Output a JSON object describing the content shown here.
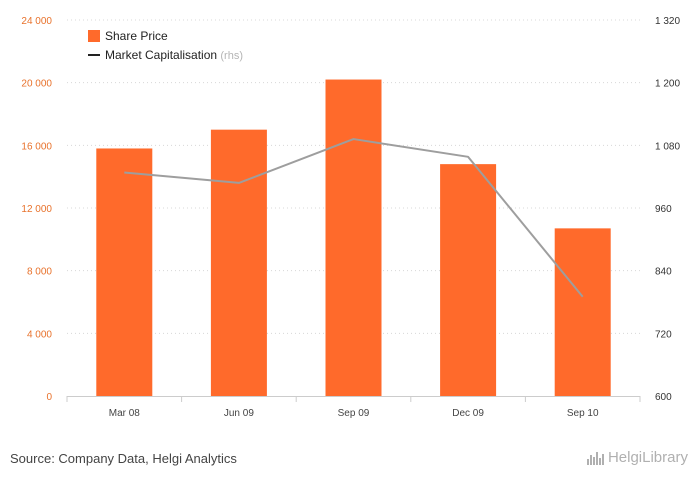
{
  "chart_data": {
    "type": "bar",
    "categories": [
      "Mar 08",
      "Jun 09",
      "Sep 09",
      "Dec 09",
      "Sep 10"
    ],
    "series": [
      {
        "name": "Share Price",
        "kind": "bar",
        "axis": "left",
        "color": "#ff6a2b",
        "values": [
          15800,
          17000,
          20200,
          14800,
          10700
        ]
      },
      {
        "name": "Market Capitalisation",
        "kind": "line",
        "axis": "right",
        "color": "#9e9e9e",
        "values": [
          1028,
          1008,
          1092,
          1058,
          790
        ]
      }
    ],
    "legend": [
      {
        "label": "Share Price",
        "suffix": ""
      },
      {
        "label": "Market Capitalisation",
        "suffix": "(rhs)"
      }
    ],
    "left_axis": {
      "min": 0,
      "max": 24000,
      "ticks": [
        {
          "value": 0,
          "label": "0"
        },
        {
          "value": 4000,
          "label": "4 000"
        },
        {
          "value": 8000,
          "label": "8 000"
        },
        {
          "value": 12000,
          "label": "12 000"
        },
        {
          "value": 16000,
          "label": "16 000"
        },
        {
          "value": 20000,
          "label": "20 000"
        },
        {
          "value": 24000,
          "label": "24 000"
        }
      ]
    },
    "right_axis": {
      "min": 600,
      "max": 1320,
      "ticks": [
        {
          "value": 600,
          "label": "600"
        },
        {
          "value": 720,
          "label": "720"
        },
        {
          "value": 840,
          "label": "840"
        },
        {
          "value": 960,
          "label": "960"
        },
        {
          "value": 1080,
          "label": "1 080"
        },
        {
          "value": 1200,
          "label": "1 200"
        },
        {
          "value": 1320,
          "label": "1 320"
        }
      ]
    },
    "grid": true,
    "legend_position": "top-left"
  },
  "footer": {
    "source": "Source: Company Data, Helgi Analytics",
    "brand": "HelgiLibrary"
  }
}
